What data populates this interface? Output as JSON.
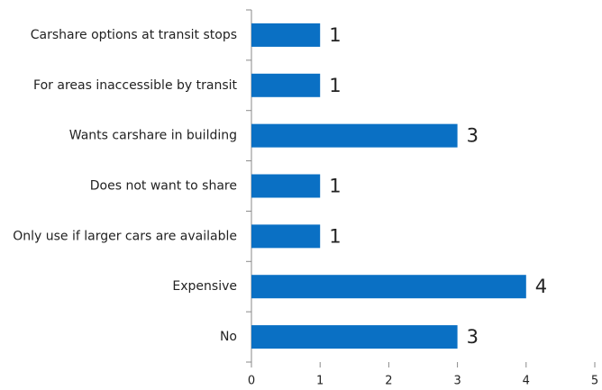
{
  "chart_data": {
    "type": "hbar",
    "categories": [
      "Carshare options at transit stops",
      "For areas inaccessible by transit",
      "Wants carshare in building",
      "Does not want to share",
      "Only use if larger cars are available",
      "Expensive",
      "No"
    ],
    "values": [
      1,
      1,
      3,
      1,
      1,
      4,
      3
    ],
    "color": "#0a70c4",
    "xlim": [
      0,
      5
    ],
    "xticks": [
      0,
      1,
      2,
      3,
      4,
      5
    ],
    "grid": false
  }
}
